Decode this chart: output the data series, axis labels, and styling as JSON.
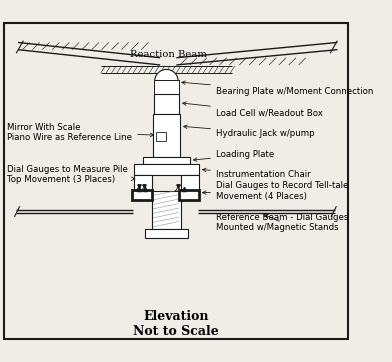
{
  "title": "Elevation\nNot to Scale",
  "title_fontsize": 9,
  "label_fontsize": 6.2,
  "bg_color": "#f0ede6",
  "line_color": "#1a1a1a",
  "labels": {
    "reaction_beam": "Reaction Beam",
    "bearing_plate": "Bearing Plate w/Moment Connection",
    "load_cell": "Load Cell w/Readout Box",
    "mirror": "Mirror With Scale\nPiano Wire as Reference Line",
    "hydraulic_jack": "Hydraulic Jack w/pump",
    "loading_plate": "Loading Plate",
    "instr_chair": "Instrumentation Chair",
    "dial_pile": "Dial Gauges to Measure Pile\nTop Movement (3 Places)",
    "dial_telltale": "Dial Gauges to Record Tell-tale\nMovement (4 Places)",
    "reference_beam": "Reference Beam - Dial Gauges\nMounted w/Magnetic Stands"
  }
}
